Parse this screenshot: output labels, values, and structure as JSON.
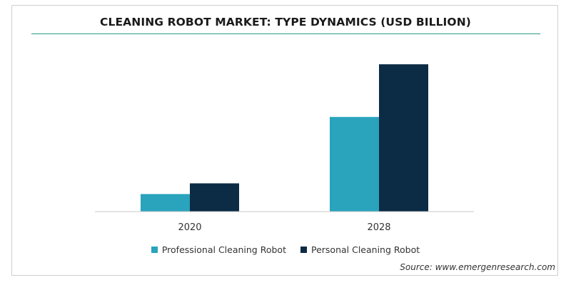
{
  "chart_data": {
    "type": "bar",
    "title": "CLEANING ROBOT MARKET: TYPE DYNAMICS (USD BILLION)",
    "categories": [
      "2020",
      "2028"
    ],
    "series": [
      {
        "name": "Professional Cleaning Robot",
        "color": "#2aa3bd",
        "values": [
          2.3,
          12.4
        ]
      },
      {
        "name": "Personal Cleaning Robot",
        "color": "#0c2b45",
        "values": [
          3.7,
          19.3
        ]
      }
    ],
    "ylim": [
      0,
      21
    ],
    "grid": false,
    "legend_position": "bottom-center",
    "xlabel": "",
    "ylabel": ""
  },
  "source": "Source: www.emergenresearch.com",
  "colors": {
    "title_rule": "#2a9a8a",
    "axis": "#c8c8c8"
  }
}
